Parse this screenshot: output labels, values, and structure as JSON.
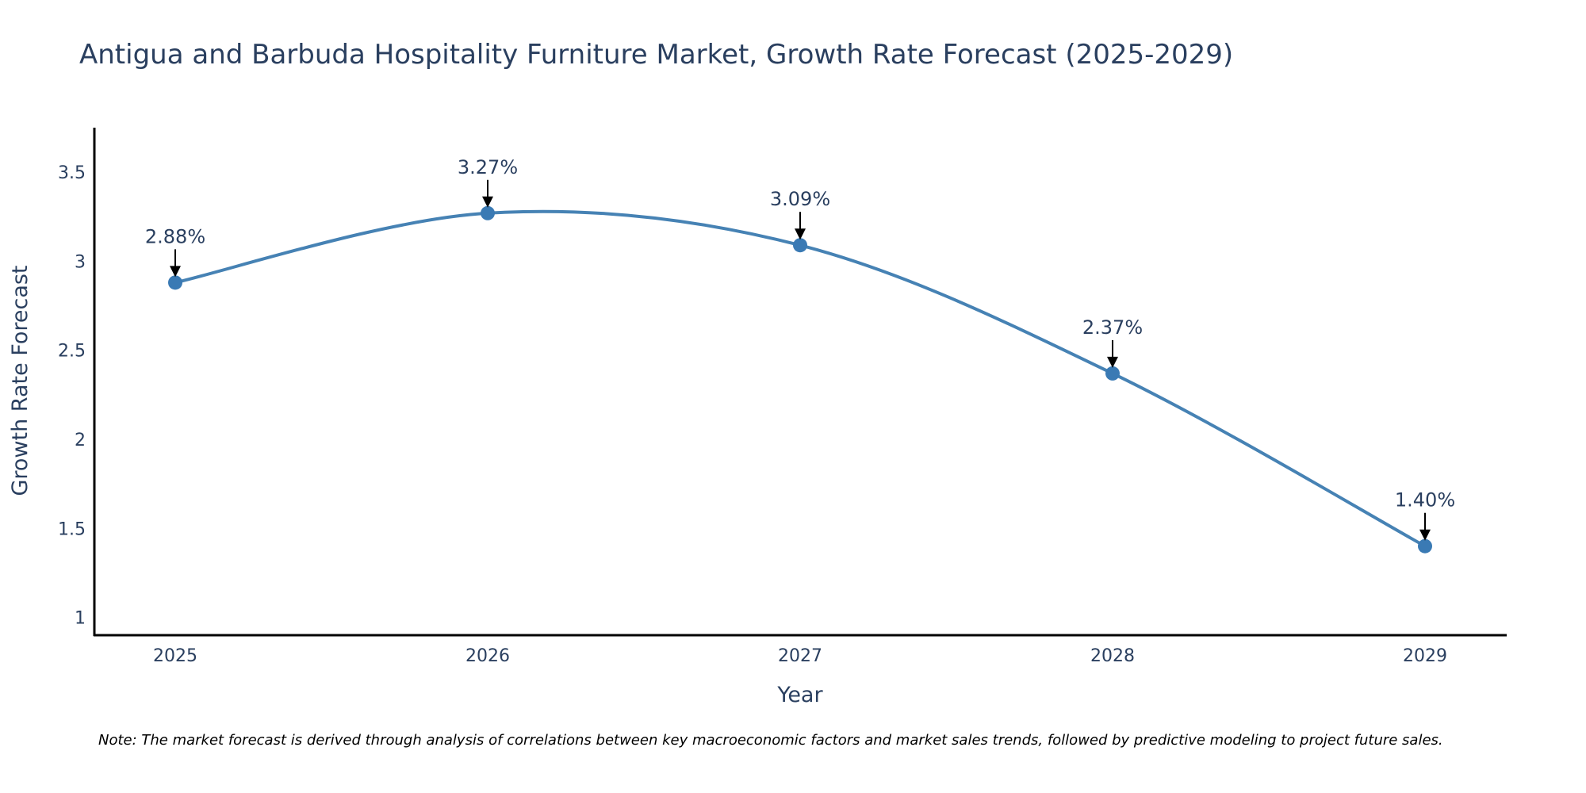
{
  "chart_data": {
    "type": "line",
    "title": "Antigua and Barbuda Hospitality Furniture Market, Growth Rate Forecast (2025-2029)",
    "xlabel": "Year",
    "ylabel": "Growth Rate Forecast",
    "categories": [
      "2025",
      "2026",
      "2027",
      "2028",
      "2029"
    ],
    "values": [
      2.88,
      3.27,
      3.09,
      2.37,
      1.4
    ],
    "data_labels": [
      "2.88%",
      "3.27%",
      "3.09%",
      "2.37%",
      "1.40%"
    ],
    "y_ticks": [
      1,
      1.5,
      2,
      2.5,
      3,
      3.5
    ],
    "y_tick_labels": [
      "1",
      "1.5",
      "2",
      "2.5",
      "3",
      "3.5"
    ],
    "ylim": [
      0.9,
      3.75
    ],
    "grid": false,
    "line_shape": "spline",
    "line_color": "#4682b4",
    "marker_color": "#3a7ab4",
    "note": "Note: The market forecast is derived through analysis of correlations between key macroeconomic factors and market sales trends, followed by predictive modeling to project future sales."
  }
}
